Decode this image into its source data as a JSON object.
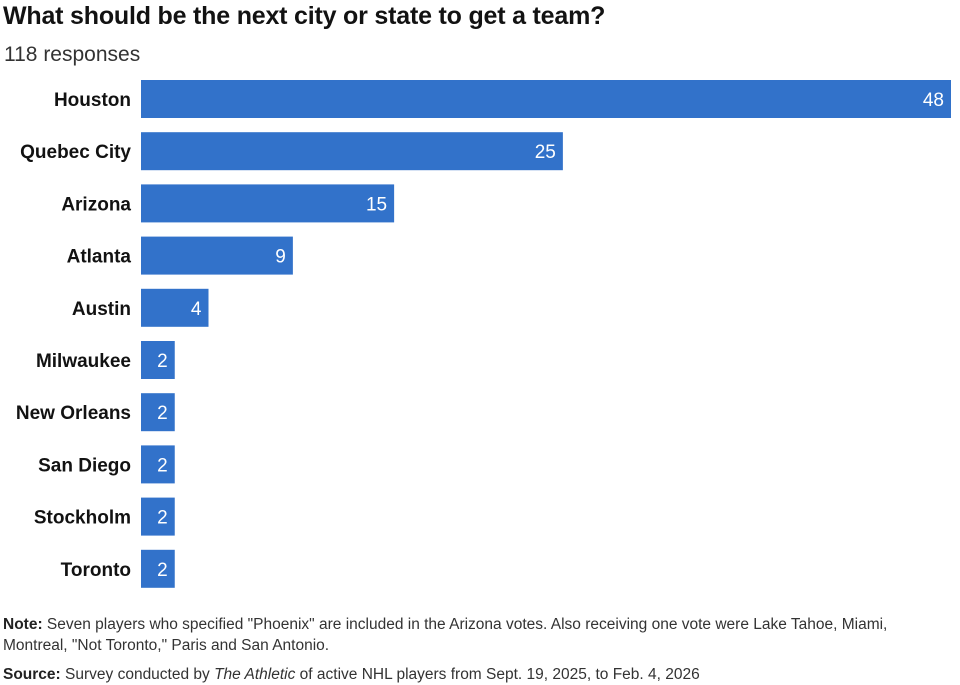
{
  "chart_data": {
    "type": "bar",
    "orientation": "horizontal",
    "title": "What should be the next city or state to get a team?",
    "subtitle": "118 responses",
    "categories": [
      "Houston",
      "Quebec City",
      "Arizona",
      "Atlanta",
      "Austin",
      "Milwaukee",
      "New Orleans",
      "San Diego",
      "Stockholm",
      "Toronto"
    ],
    "values": [
      48,
      25,
      15,
      9,
      4,
      2,
      2,
      2,
      2,
      2
    ],
    "xlim": [
      0,
      48
    ],
    "grid": false,
    "bar_color": "#3272ca",
    "label_color": "#ffffff"
  },
  "note": {
    "label": "Note:",
    "text": " Seven players who specified \"Phoenix\" are included in the Arizona votes. Also receiving one vote were Lake Tahoe, Miami, Montreal, \"Not Toronto,\" Paris and San Antonio."
  },
  "source": {
    "label": "Source:",
    "text_before": " Survey conducted by ",
    "italic": "The Athletic",
    "text_after": " of active NHL players from Sept. 19, 2025, to Feb. 4, 2026"
  }
}
